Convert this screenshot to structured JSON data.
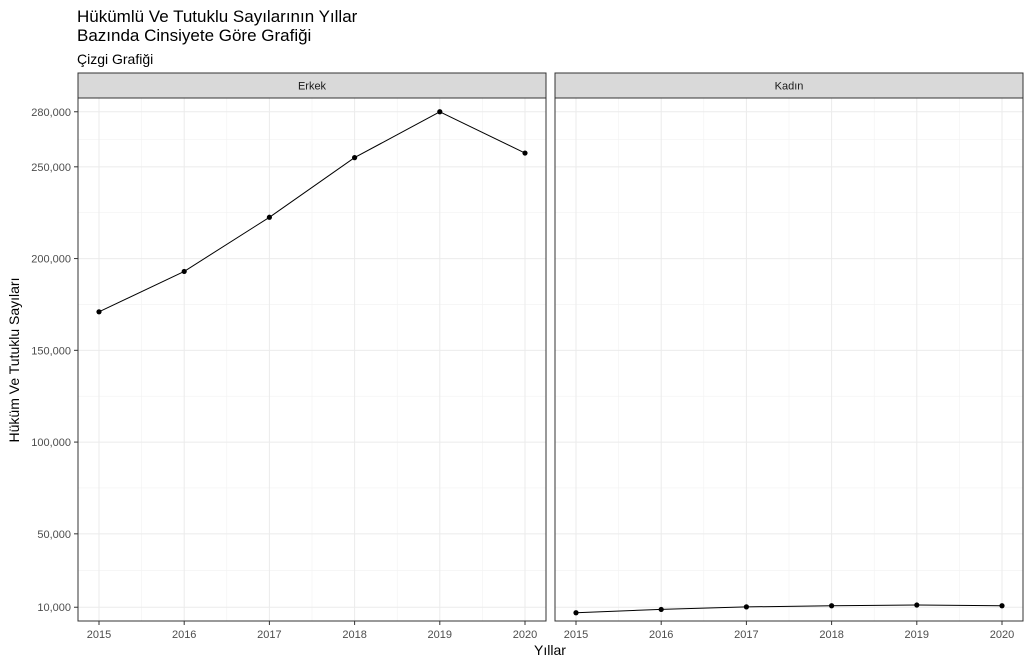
{
  "chart_data": {
    "type": "line",
    "title_line1": "Hükümlü Ve Tutuklu Sayılarının Yıllar",
    "title_line2": "Bazında Cinsiyete Göre Grafiği",
    "subtitle": "Çizgi Grafiği",
    "xlabel": "Yıllar",
    "ylabel": "Hüküm Ve Tutuklu Sayıları",
    "x": [
      2015,
      2016,
      2017,
      2018,
      2019,
      2020
    ],
    "x_tick_labels": [
      "2015",
      "2016",
      "2017",
      "2018",
      "2019",
      "2020"
    ],
    "y_ticks": [
      10000,
      50000,
      100000,
      150000,
      200000,
      250000,
      280000
    ],
    "y_tick_labels": [
      "10,000",
      "50,000",
      "100,000",
      "150,000",
      "200,000",
      "250,000",
      "280,000"
    ],
    "ylim": [
      2500,
      287500
    ],
    "grid": true,
    "facets": [
      {
        "label": "Erkek",
        "values": [
          171000,
          193000,
          222500,
          255000,
          280000,
          257500
        ]
      },
      {
        "label": "Kadın",
        "values": [
          7000,
          8800,
          10200,
          10800,
          11200,
          10800
        ]
      }
    ],
    "colors": {
      "line": "#000000",
      "point": "#000000",
      "strip_background": "#d9d9d9",
      "panel_border": "#333333",
      "grid": "#ebebeb"
    }
  }
}
